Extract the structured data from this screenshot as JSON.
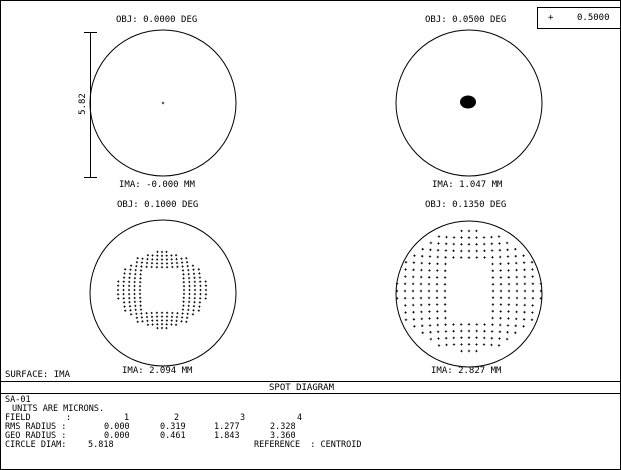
{
  "fields": [
    {
      "obj": "OBJ: 0.0000 DEG",
      "ima": "IMA: -0.000 MM"
    },
    {
      "obj": "OBJ: 0.0500 DEG",
      "ima": "IMA: 1.047 MM"
    },
    {
      "obj": "OBJ: 0.1000 DEG",
      "ima": "IMA: 2.094 MM"
    },
    {
      "obj": "OBJ: 0.1350 DEG",
      "ima": "IMA: 2.827 MM"
    }
  ],
  "wavelength_legend": {
    "symbol": "+",
    "value": "0.5000"
  },
  "scale_bar_label": "5.82",
  "surface_label": "SURFACE: IMA",
  "diagram_title": "SPOT DIAGRAM",
  "info": {
    "lens_name": "SA-01",
    "units_line": "UNITS ARE MICRONS.",
    "field_label": "FIELD",
    "field_colon": ":",
    "field_numbers": [
      "1",
      "2",
      "3",
      "4"
    ],
    "rms_label": "RMS RADIUS :",
    "rms_values": [
      "0.000",
      "0.319",
      "1.277",
      "2.328"
    ],
    "geo_label": "GEO RADIUS :",
    "geo_values": [
      "0.000",
      "0.461",
      "1.843",
      "3.360"
    ],
    "circle_label": "CIRCLE DIAM:",
    "circle_value": "5.818",
    "reference_label": "REFERENCE  : CENTROID"
  }
}
